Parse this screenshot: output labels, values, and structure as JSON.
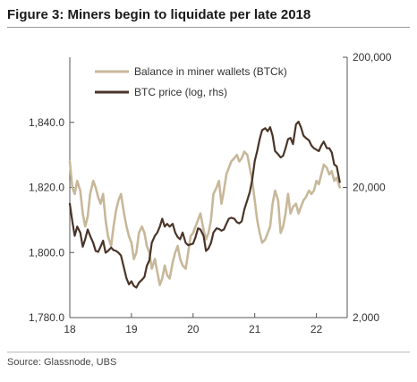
{
  "figure": {
    "title": "Figure 3: Miners begin to liquidate per late 2018",
    "source": "Source: Glassnode, UBS"
  },
  "chart_data": {
    "type": "line",
    "x_ticks": [
      "18",
      "19",
      "20",
      "21",
      "22"
    ],
    "y_left": {
      "ticks": [
        "1,780.0",
        "1,800.0",
        "1,820.0",
        "1,840.0"
      ],
      "range": [
        1780,
        1860
      ]
    },
    "y_right": {
      "ticks": [
        "2,000",
        "20,000",
        "200,000"
      ],
      "range": [
        2000,
        200000
      ],
      "scale": "log"
    },
    "legend": {
      "placement": "top-left"
    },
    "colors": {
      "balance": "#c8b89a",
      "price": "#4a3428"
    },
    "series": [
      {
        "name": "Balance in miner wallets (BTCk)",
        "axis": "left",
        "x": [
          2018.0,
          2018.04,
          2018.08,
          2018.12,
          2018.17,
          2018.21,
          2018.25,
          2018.29,
          2018.33,
          2018.38,
          2018.42,
          2018.46,
          2018.5,
          2018.54,
          2018.58,
          2018.62,
          2018.67,
          2018.71,
          2018.75,
          2018.79,
          2018.83,
          2018.88,
          2018.92,
          2018.96,
          2019.0,
          2019.04,
          2019.08,
          2019.12,
          2019.17,
          2019.21,
          2019.25,
          2019.29,
          2019.33,
          2019.38,
          2019.42,
          2019.46,
          2019.5,
          2019.54,
          2019.58,
          2019.62,
          2019.67,
          2019.71,
          2019.75,
          2019.79,
          2019.83,
          2019.88,
          2019.92,
          2019.96,
          2020.0,
          2020.04,
          2020.08,
          2020.12,
          2020.17,
          2020.21,
          2020.25,
          2020.29,
          2020.33,
          2020.38,
          2020.42,
          2020.46,
          2020.5,
          2020.54,
          2020.58,
          2020.62,
          2020.67,
          2020.71,
          2020.75,
          2020.79,
          2020.83,
          2020.88,
          2020.92,
          2020.96,
          2021.0,
          2021.04,
          2021.08,
          2021.12,
          2021.17,
          2021.21,
          2021.25,
          2021.29,
          2021.33,
          2021.38,
          2021.42,
          2021.46,
          2021.5,
          2021.54,
          2021.58,
          2021.62,
          2021.67,
          2021.71,
          2021.75,
          2021.79,
          2021.83,
          2021.88,
          2021.92,
          2021.96,
          2022.0,
          2022.04,
          2022.08,
          2022.12,
          2022.17,
          2022.21,
          2022.25,
          2022.29,
          2022.33,
          2022.38
        ],
        "values": [
          1828,
          1820,
          1818,
          1822,
          1819,
          1812,
          1808,
          1811,
          1818,
          1822,
          1820,
          1817,
          1815,
          1818,
          1810,
          1805,
          1802,
          1808,
          1813,
          1816,
          1818,
          1812,
          1808,
          1805,
          1803,
          1798,
          1800,
          1806,
          1808,
          1806,
          1802,
          1800,
          1795,
          1798,
          1794,
          1790,
          1792,
          1796,
          1793,
          1792,
          1797,
          1800,
          1802,
          1798,
          1796,
          1795,
          1800,
          1805,
          1806,
          1808,
          1810,
          1812,
          1807,
          1804,
          1806,
          1810,
          1818,
          1820,
          1822,
          1815,
          1819,
          1824,
          1826,
          1828,
          1829,
          1830,
          1828,
          1829,
          1831,
          1830,
          1826,
          1822,
          1816,
          1810,
          1806,
          1803,
          1804,
          1806,
          1808,
          1815,
          1819,
          1816,
          1806,
          1808,
          1812,
          1818,
          1812,
          1814,
          1815,
          1812,
          1814,
          1816,
          1817,
          1819,
          1818,
          1819,
          1822,
          1821,
          1824,
          1827,
          1826,
          1824,
          1825,
          1822,
          1823,
          1820
        ]
      },
      {
        "name": "BTC price (log, rhs)",
        "axis": "right",
        "x": [
          2018.0,
          2018.04,
          2018.08,
          2018.12,
          2018.17,
          2018.21,
          2018.25,
          2018.29,
          2018.33,
          2018.38,
          2018.42,
          2018.46,
          2018.5,
          2018.54,
          2018.58,
          2018.62,
          2018.67,
          2018.71,
          2018.75,
          2018.79,
          2018.83,
          2018.88,
          2018.92,
          2018.96,
          2019.0,
          2019.04,
          2019.08,
          2019.12,
          2019.17,
          2019.21,
          2019.25,
          2019.29,
          2019.33,
          2019.38,
          2019.42,
          2019.46,
          2019.5,
          2019.54,
          2019.58,
          2019.62,
          2019.67,
          2019.71,
          2019.75,
          2019.79,
          2019.83,
          2019.88,
          2019.92,
          2019.96,
          2020.0,
          2020.04,
          2020.08,
          2020.12,
          2020.17,
          2020.21,
          2020.25,
          2020.29,
          2020.33,
          2020.38,
          2020.42,
          2020.46,
          2020.5,
          2020.54,
          2020.58,
          2020.62,
          2020.67,
          2020.71,
          2020.75,
          2020.79,
          2020.83,
          2020.88,
          2020.92,
          2020.96,
          2021.0,
          2021.04,
          2021.08,
          2021.12,
          2021.17,
          2021.21,
          2021.25,
          2021.29,
          2021.33,
          2021.38,
          2021.42,
          2021.46,
          2021.5,
          2021.54,
          2021.58,
          2021.62,
          2021.67,
          2021.71,
          2021.75,
          2021.79,
          2021.83,
          2021.88,
          2021.92,
          2021.96,
          2022.0,
          2022.04,
          2022.08,
          2022.12,
          2022.17,
          2022.21,
          2022.25,
          2022.29,
          2022.33,
          2022.38
        ],
        "values": [
          15000,
          11000,
          8500,
          10000,
          9000,
          7000,
          8000,
          9500,
          8500,
          7500,
          6500,
          6400,
          7000,
          7800,
          6300,
          6500,
          6900,
          6600,
          6500,
          6300,
          6000,
          4800,
          4000,
          3600,
          3800,
          3500,
          3400,
          3700,
          3900,
          4100,
          5000,
          5500,
          7500,
          8500,
          9000,
          10000,
          11500,
          10000,
          10500,
          10000,
          10500,
          9000,
          8300,
          8000,
          9000,
          7500,
          7200,
          7300,
          7400,
          8300,
          9700,
          9500,
          8500,
          6500,
          6800,
          7500,
          9000,
          9700,
          9600,
          9300,
          9500,
          10500,
          11500,
          11700,
          11500,
          10800,
          10600,
          11000,
          13500,
          16000,
          18500,
          23000,
          32000,
          38000,
          47000,
          55000,
          57000,
          54000,
          58000,
          50000,
          38000,
          36000,
          34000,
          35000,
          40000,
          47000,
          48000,
          43000,
          61000,
          64000,
          58000,
          50000,
          48000,
          46000,
          42000,
          40000,
          39000,
          38000,
          42000,
          45000,
          40000,
          40000,
          37000,
          30000,
          29000,
          22000
        ]
      }
    ]
  }
}
